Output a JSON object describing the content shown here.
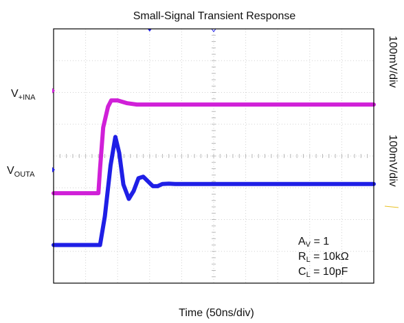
{
  "chart_data": {
    "type": "line",
    "title": "Small-Signal Transient Response",
    "xlabel": "Time (50ns/div)",
    "x_divisions": 10,
    "y_divisions": 8,
    "grid": true,
    "series": [
      {
        "name": "V",
        "name_sub": "+INA",
        "scale": "100mV/div",
        "color": "#d020d8",
        "x": [
          0,
          1.4,
          1.45,
          1.55,
          1.7,
          1.8,
          2.0,
          2.3,
          2.6,
          10
        ],
        "y": [
          2.83,
          2.83,
          3.6,
          4.9,
          5.55,
          5.75,
          5.75,
          5.66,
          5.62,
          5.62
        ]
      },
      {
        "name": "V",
        "name_sub": "OUTA",
        "scale": "100mV/div",
        "color": "#1f1fe6",
        "x": [
          0,
          1.45,
          1.6,
          1.78,
          1.93,
          2.05,
          2.18,
          2.35,
          2.5,
          2.65,
          2.8,
          2.95,
          3.1,
          3.25,
          3.4,
          3.6,
          3.8,
          10
        ],
        "y": [
          1.2,
          1.2,
          2.1,
          3.7,
          4.6,
          4.1,
          3.1,
          2.65,
          2.9,
          3.3,
          3.35,
          3.2,
          3.05,
          3.05,
          3.12,
          3.13,
          3.12,
          3.12
        ]
      }
    ],
    "annotations": [
      {
        "main": "A",
        "sub": "V",
        "rest": " = 1"
      },
      {
        "main": "R",
        "sub": "L",
        "rest": " = 10kΩ"
      },
      {
        "main": "C",
        "sub": "L",
        "rest": " = 10pF"
      }
    ],
    "colors": {
      "grid": "#d0d0d0",
      "scale_underline": "#e8c020"
    }
  }
}
